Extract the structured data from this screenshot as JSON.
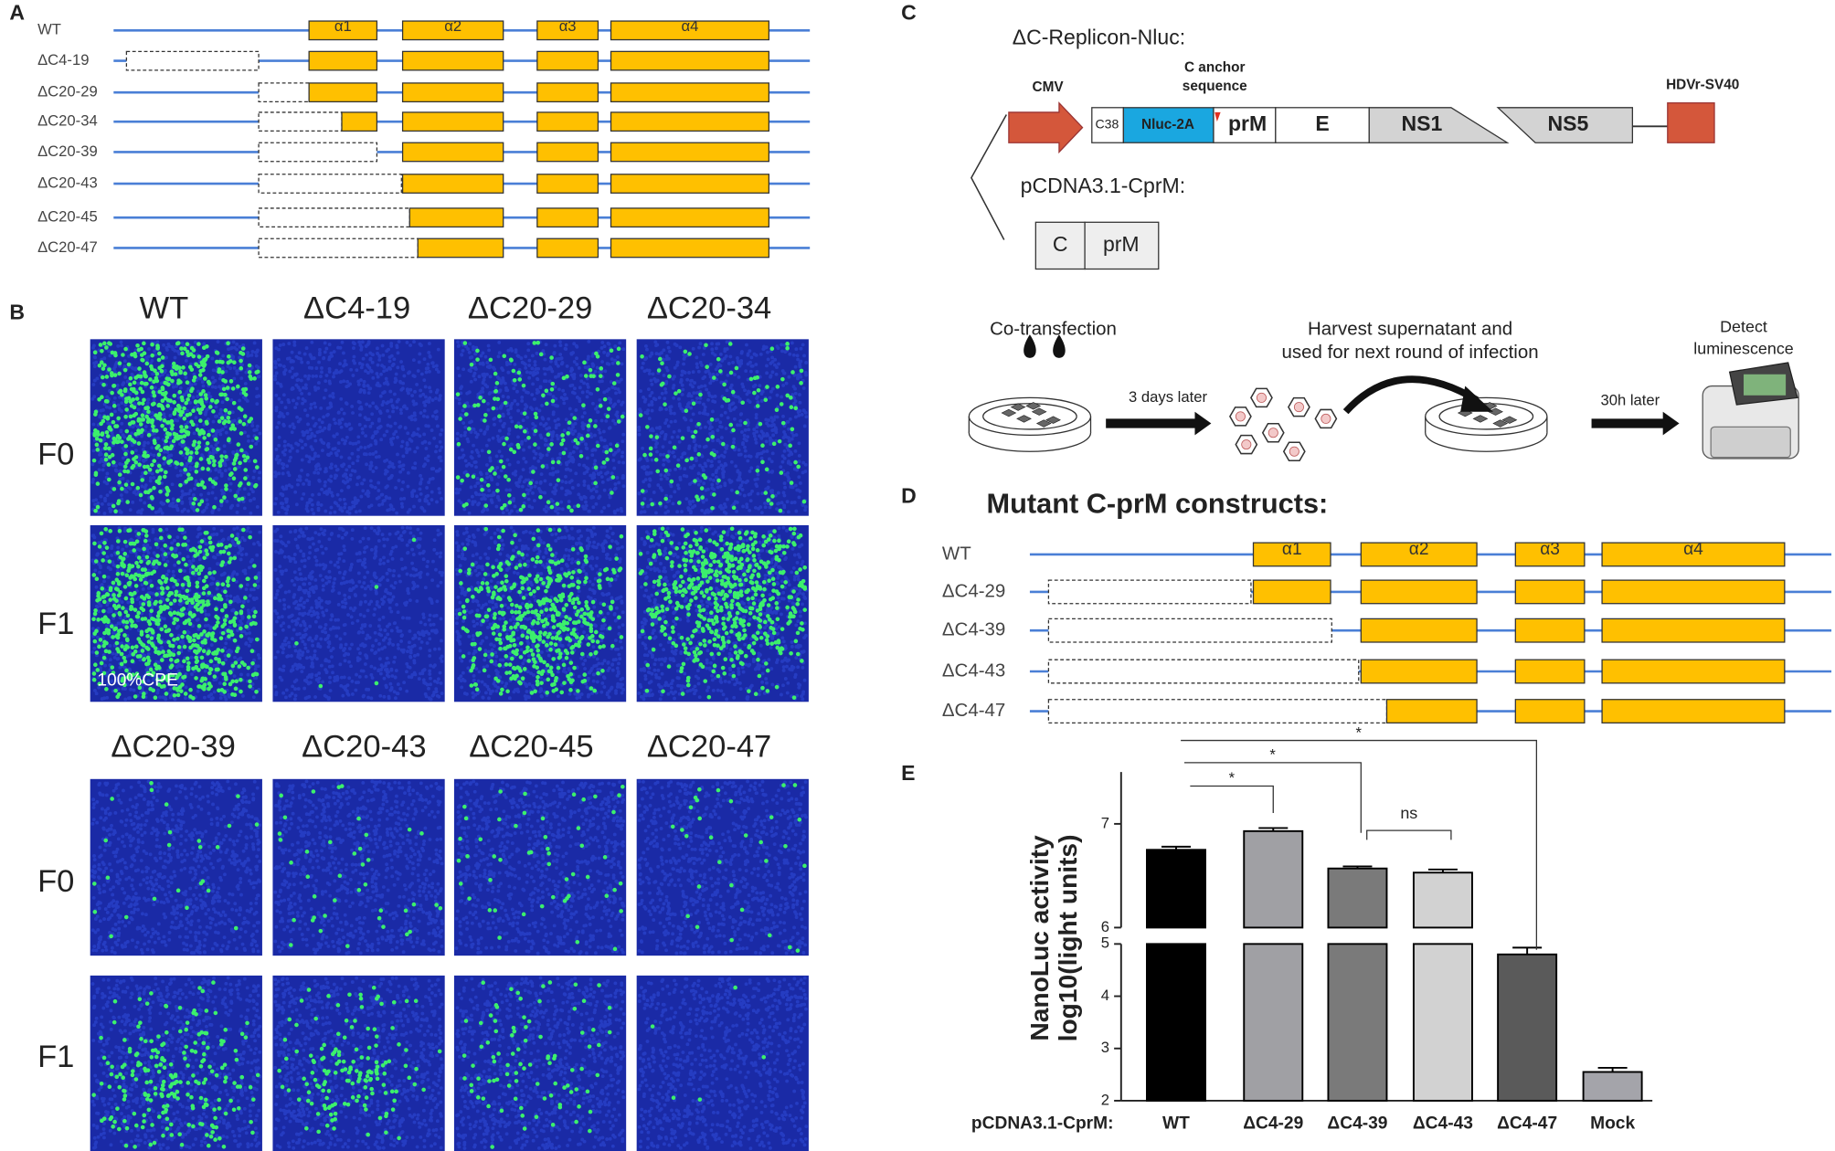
{
  "panel_a": {
    "label": "A",
    "helices": [
      "α1",
      "α2",
      "α3",
      "α4"
    ],
    "rows": [
      "WT",
      "ΔC4-19",
      "ΔC20-29",
      "ΔC20-34",
      "ΔC20-39",
      "ΔC20-43",
      "ΔC20-45",
      "ΔC20-47"
    ]
  },
  "panel_b": {
    "label": "B",
    "top_columns": [
      "WT",
      "ΔC4-19",
      "ΔC20-29",
      "ΔC20-34"
    ],
    "bottom_columns": [
      "ΔC20-39",
      "ΔC20-43",
      "ΔC20-45",
      "ΔC20-47"
    ],
    "rows": [
      "F0",
      "F1"
    ],
    "annotation": "100%CPE"
  },
  "panel_c": {
    "label": "C",
    "construct_title": "ΔC-Replicon-Nluc:",
    "promoter": "CMV",
    "anchor_label": [
      "C anchor",
      "sequence"
    ],
    "terminator": "HDVr-SV40",
    "elements": [
      "C38",
      "Nluc-2A",
      "prM",
      "E",
      "NS1",
      "NS5"
    ],
    "helper_title": "pCDNA3.1-CprM:",
    "helper_elements": [
      "C",
      "prM"
    ],
    "workflow": {
      "step1": "Co-transfection",
      "arrow1": "3 days later",
      "step2": [
        "Harvest supernatant and",
        "used for next round of infection"
      ],
      "arrow2": "30h later",
      "step3": [
        "Detect",
        "luminescence"
      ]
    }
  },
  "panel_d": {
    "label": "D",
    "title": "Mutant C-prM constructs:",
    "helices": [
      "α1",
      "α2",
      "α3",
      "α4"
    ],
    "rows": [
      "WT",
      "ΔC4-29",
      "ΔC4-39",
      "ΔC4-43",
      "ΔC4-47"
    ]
  },
  "chart_data": {
    "type": "bar",
    "label": "E",
    "ylabel": [
      "NanoLuc activity",
      "log10(light units)"
    ],
    "xlabel": "pCDNA3.1-CprM:",
    "categories": [
      "WT",
      "ΔC4-29",
      "ΔC4-39",
      "ΔC4-43",
      "ΔC4-47",
      "Mock"
    ],
    "values": [
      6.75,
      6.93,
      6.57,
      6.53,
      4.8,
      2.55
    ],
    "errors": [
      0.03,
      0.03,
      0.02,
      0.03,
      0.13,
      0.08
    ],
    "colors": [
      "#000000",
      "#a0a0a4",
      "#7a7a7a",
      "#d2d2d2",
      "#5a5a5a",
      "#a4a4aa"
    ],
    "axis_segments": [
      {
        "ylim": [
          2,
          5
        ],
        "yticks": [
          2,
          3,
          4,
          5
        ]
      },
      {
        "ylim": [
          6,
          7.5
        ],
        "yticks": [
          6,
          7
        ]
      }
    ],
    "annotations": [
      "*",
      "*",
      "*",
      "ns"
    ]
  }
}
